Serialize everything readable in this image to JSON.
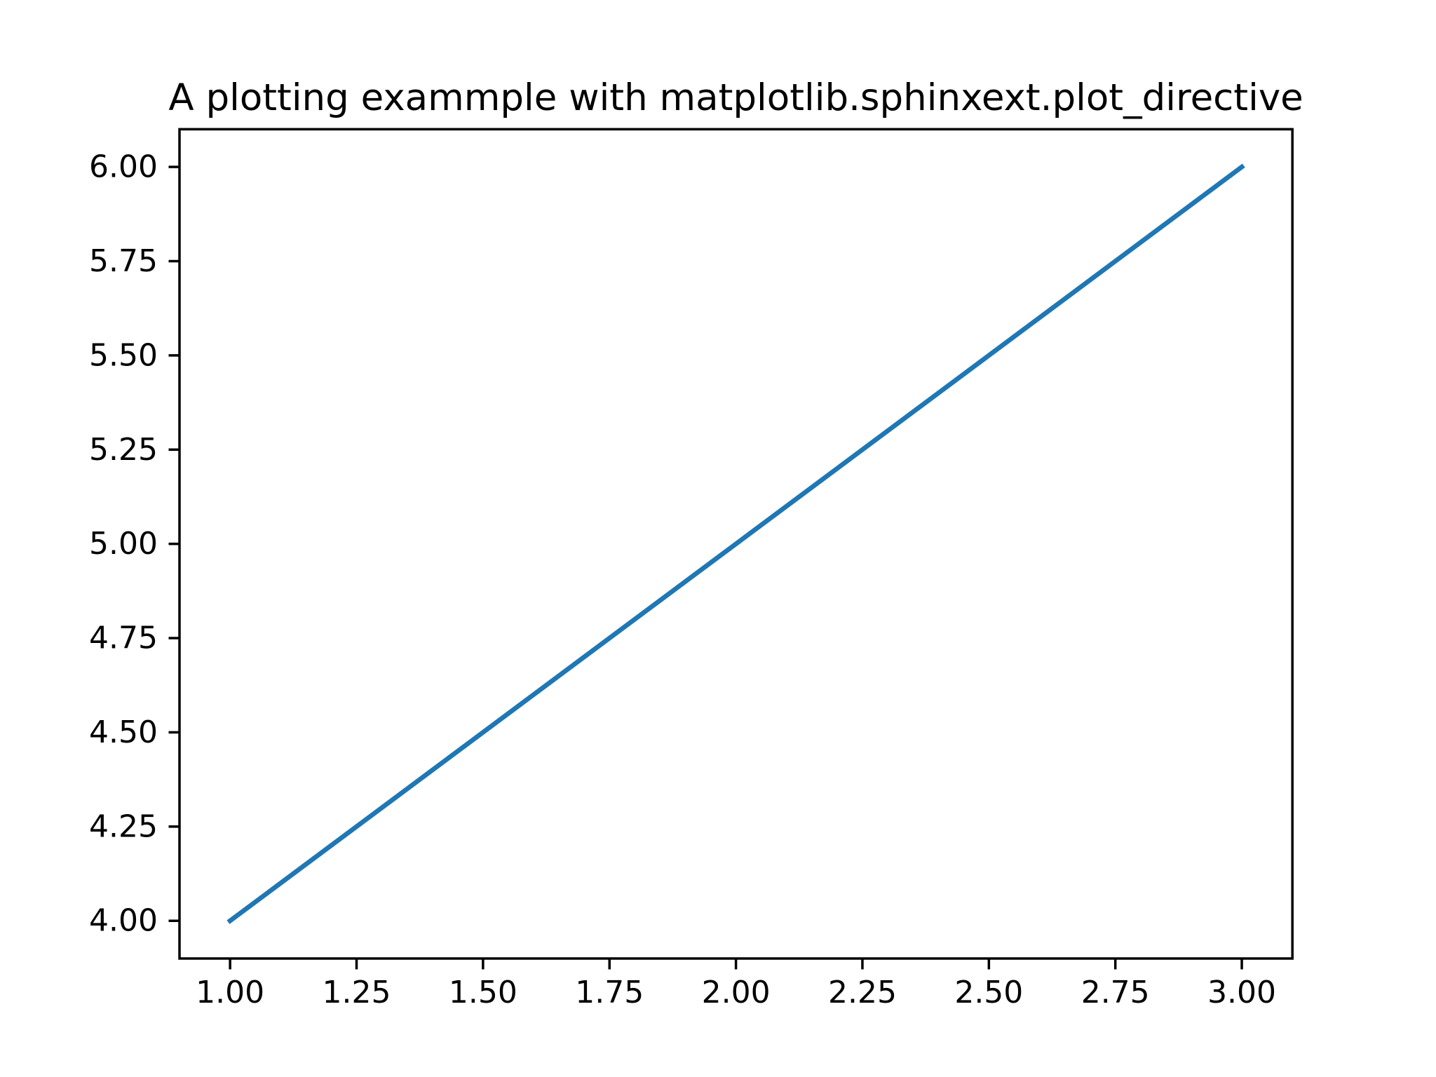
{
  "chart_data": {
    "type": "line",
    "title": "A plotting exammple with matplotlib.sphinxext.plot_directive",
    "x": [
      1,
      2,
      3
    ],
    "values": [
      4,
      5,
      6
    ],
    "color": "#1f77b4",
    "xlim": [
      0.9,
      3.1
    ],
    "ylim": [
      3.9,
      6.1
    ],
    "xticks": [
      {
        "value": 1,
        "label": "1.00"
      },
      {
        "value": 1.25,
        "label": "1.25"
      },
      {
        "value": 1.5,
        "label": "1.50"
      },
      {
        "value": 1.75,
        "label": "1.75"
      },
      {
        "value": 2,
        "label": "2.00"
      },
      {
        "value": 2.25,
        "label": "2.25"
      },
      {
        "value": 2.5,
        "label": "2.50"
      },
      {
        "value": 2.75,
        "label": "2.75"
      },
      {
        "value": 3,
        "label": "3.00"
      }
    ],
    "yticks": [
      {
        "value": 4,
        "label": "4.00"
      },
      {
        "value": 4.25,
        "label": "4.25"
      },
      {
        "value": 4.5,
        "label": "4.50"
      },
      {
        "value": 4.75,
        "label": "4.75"
      },
      {
        "value": 5,
        "label": "5.00"
      },
      {
        "value": 5.25,
        "label": "5.25"
      },
      {
        "value": 5.5,
        "label": "5.50"
      },
      {
        "value": 5.75,
        "label": "5.75"
      },
      {
        "value": 6,
        "label": "6.00"
      }
    ],
    "grid": false
  }
}
